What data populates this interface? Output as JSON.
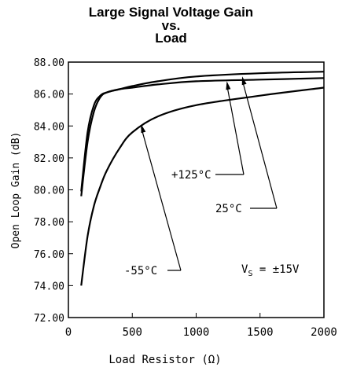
{
  "chart_data": {
    "type": "line",
    "title_lines": [
      "Large Signal Voltage Gain",
      "vs.",
      "Load"
    ],
    "xlabel": "Load Resistor (Ω)",
    "ylabel": "Open Loop Gain (dB)",
    "xlim": [
      0,
      2000
    ],
    "ylim": [
      72,
      88
    ],
    "x_ticks": [
      0,
      500,
      1000,
      1500,
      2000
    ],
    "x_tick_labels": [
      "0",
      "500",
      "1000",
      "1500",
      "2000"
    ],
    "y_ticks": [
      72,
      74,
      76,
      78,
      80,
      82,
      84,
      86,
      88
    ],
    "y_tick_labels": [
      "72.00",
      "74.00",
      "76.00",
      "78.00",
      "80.00",
      "82.00",
      "84.00",
      "86.00",
      "88.00"
    ],
    "grid": false,
    "series": [
      {
        "name": "+125°C",
        "x": [
          100,
          150,
          200,
          250,
          300,
          400,
          500,
          700,
          1000,
          1500,
          2000
        ],
        "y": [
          79.6,
          83.0,
          84.9,
          85.8,
          86.1,
          86.3,
          86.4,
          86.6,
          86.8,
          86.9,
          87.0
        ]
      },
      {
        "name": "25°C",
        "x": [
          100,
          150,
          200,
          250,
          300,
          400,
          500,
          700,
          1000,
          1500,
          2000
        ],
        "y": [
          79.9,
          83.6,
          85.3,
          85.9,
          86.1,
          86.3,
          86.5,
          86.8,
          87.1,
          87.3,
          87.4
        ]
      },
      {
        "name": "-55°C",
        "x": [
          100,
          150,
          200,
          250,
          300,
          400,
          500,
          700,
          1000,
          1500,
          2000
        ],
        "y": [
          74.0,
          77.1,
          79.0,
          80.2,
          81.2,
          82.6,
          83.6,
          84.6,
          85.3,
          85.9,
          86.4
        ]
      }
    ],
    "annotations": [
      {
        "text": "+125°C",
        "target": {
          "x": 1240,
          "y": 86.8
        }
      },
      {
        "text": "25°C",
        "target": {
          "x": 1360,
          "y": 87.1
        }
      },
      {
        "text": "-55°C",
        "target": {
          "x": 570,
          "y": 84.1
        }
      }
    ],
    "condition_label": {
      "v": "V",
      "sub": "S",
      "rest": " = ±15V"
    }
  }
}
